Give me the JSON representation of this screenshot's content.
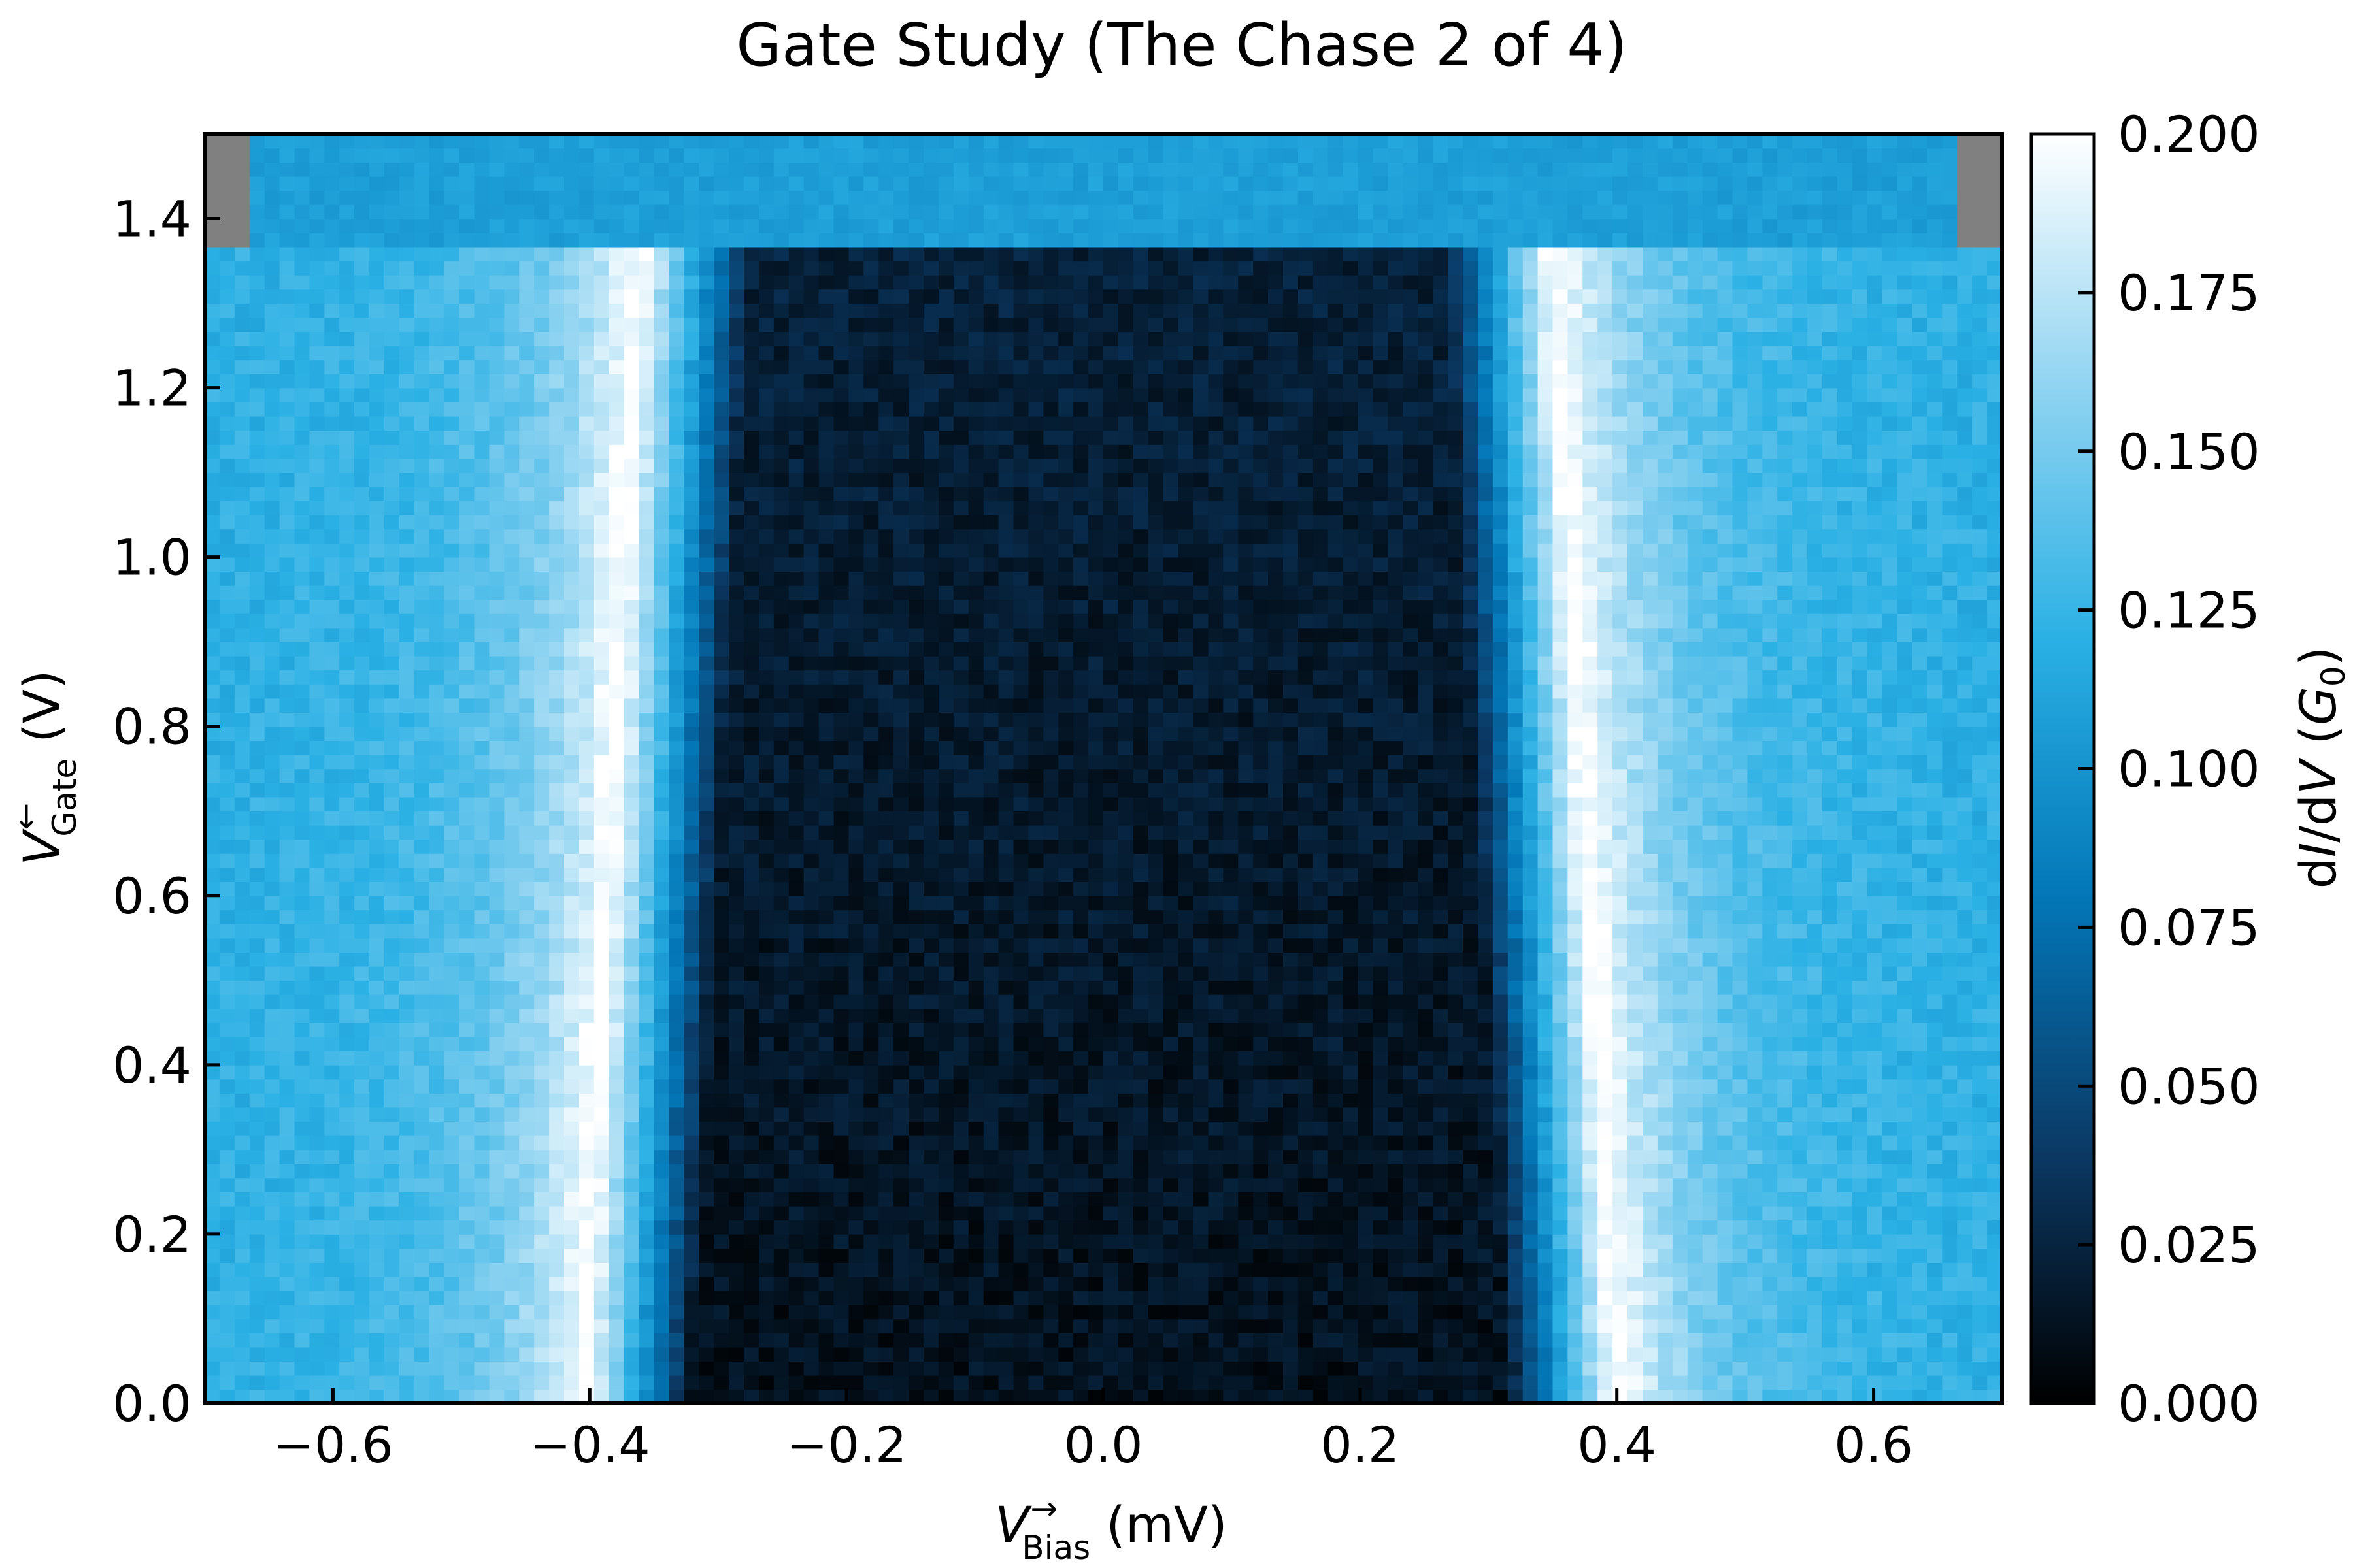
{
  "chart_data": {
    "type": "heatmap",
    "title": "Gate Study (The Chase 2 of 4)",
    "xlabel": {
      "symbol": "V",
      "arrow": "→",
      "sub": "Bias",
      "unit": " (mV)"
    },
    "ylabel": {
      "symbol": "V",
      "arrow": "←",
      "sub": "Gate",
      "unit": " (V)"
    },
    "colorbar_label": {
      "pre": "d",
      "i": "I",
      "mid": "/d",
      "v": "V",
      "open": " (",
      "g": "G",
      "gsub": "0",
      "close": ")"
    },
    "xlim": [
      -0.7,
      0.7
    ],
    "ylim": [
      0.0,
      1.5
    ],
    "clim": [
      0.0,
      0.2
    ],
    "xticks": [
      -0.6,
      -0.4,
      -0.2,
      0.0,
      0.2,
      0.4,
      0.6
    ],
    "xtick_labels": [
      "−0.6",
      "−0.4",
      "−0.2",
      "0.0",
      "0.2",
      "0.4",
      "0.6"
    ],
    "yticks": [
      0.0,
      0.2,
      0.4,
      0.6,
      0.8,
      1.0,
      1.2,
      1.4
    ],
    "ytick_labels": [
      "0.0",
      "0.2",
      "0.4",
      "0.6",
      "0.8",
      "1.0",
      "1.2",
      "1.4"
    ],
    "cticks": [
      0.0,
      0.025,
      0.05,
      0.075,
      0.1,
      0.125,
      0.15,
      0.175,
      0.2
    ],
    "ctick_labels": [
      "0.000",
      "0.025",
      "0.050",
      "0.075",
      "0.100",
      "0.125",
      "0.150",
      "0.175",
      "0.200"
    ],
    "colormap": [
      "#000000",
      "#0b3a66",
      "#0377b8",
      "#2ab0e4",
      "#8fd3f1",
      "#ffffff"
    ],
    "nan_color": "#808080",
    "sweep_end_gate": 1.362,
    "top_block_gate_range": [
      1.362,
      1.5
    ],
    "top_block_bias_range": [
      -0.665,
      0.66
    ],
    "top_block_value": 0.108,
    "background_value": 0.12,
    "gap_bottom_value": 0.012,
    "gap_center_value": 0.03,
    "gap_edge_peaks": {
      "gate": [
        0.0,
        1.362
      ],
      "bias_negative": [
        -0.405,
        -0.36
      ],
      "bias_positive": [
        0.4,
        0.35
      ],
      "peak_value": 0.205
    },
    "noise_amplitude": 0.012
  }
}
